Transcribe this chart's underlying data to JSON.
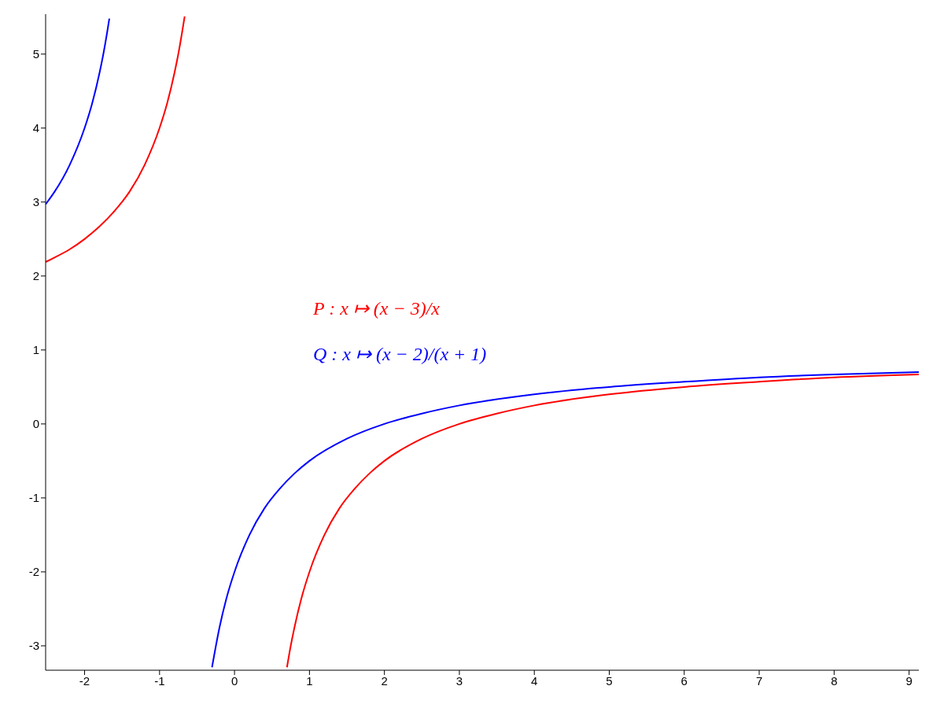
{
  "chart_data": {
    "type": "line",
    "xlim": [
      -2.52,
      9.13
    ],
    "ylim": [
      -3.33,
      5.54
    ],
    "xticks": [
      -2,
      -1,
      0,
      1,
      2,
      3,
      4,
      5,
      6,
      7,
      8,
      9
    ],
    "yticks": [
      -3,
      -2,
      -1,
      0,
      1,
      2,
      3,
      4,
      5
    ],
    "grid": false,
    "legend": false,
    "marker": "none",
    "line_style": "solid",
    "series": [
      {
        "name": "P : x ↦ (x − 3)/x",
        "color": "#ff0000",
        "x": [
          -2.52,
          -2.4,
          -2.2,
          -2,
          -1.8,
          -1.6,
          -1.4,
          -1.2,
          -1,
          -0.9,
          -0.8,
          -0.75,
          -0.7,
          -0.665,
          0,
          0.7,
          0.75,
          0.8,
          0.9,
          1,
          1.2,
          1.4,
          1.6,
          1.8,
          2,
          2.5,
          3,
          3.5,
          4,
          5,
          6,
          7,
          8,
          9.13
        ],
        "values": [
          2.19,
          2.25,
          2.36,
          2.5,
          2.67,
          2.88,
          3.14,
          3.5,
          4,
          4.33,
          4.75,
          5,
          5.29,
          5.51,
          null,
          -3.29,
          -3,
          -2.75,
          -2.33,
          -2,
          -1.5,
          -1.14,
          -0.88,
          -0.67,
          -0.5,
          -0.2,
          0,
          0.14,
          0.25,
          0.4,
          0.5,
          0.57,
          0.63,
          0.67
        ]
      },
      {
        "name": "Q : x ↦ (x − 2)/(x + 1)",
        "color": "#0000ff",
        "x": [
          -2.52,
          -2.4,
          -2.2,
          -2,
          -1.9,
          -1.8,
          -1.75,
          -1.7,
          -1.67,
          -1,
          -0.3,
          -0.2,
          -0.1,
          0,
          0.2,
          0.4,
          0.6,
          0.8,
          1,
          1.5,
          2,
          2.5,
          3,
          4,
          5,
          6,
          7,
          8,
          9.13
        ],
        "values": [
          2.97,
          3.14,
          3.5,
          4,
          4.33,
          4.75,
          5,
          5.29,
          5.48,
          null,
          -3.29,
          -2.75,
          -2.33,
          -2,
          -1.5,
          -1.14,
          -0.88,
          -0.67,
          -0.5,
          -0.2,
          0,
          0.14,
          0.25,
          0.4,
          0.5,
          0.57,
          0.63,
          0.67,
          0.7
        ]
      }
    ]
  }
}
